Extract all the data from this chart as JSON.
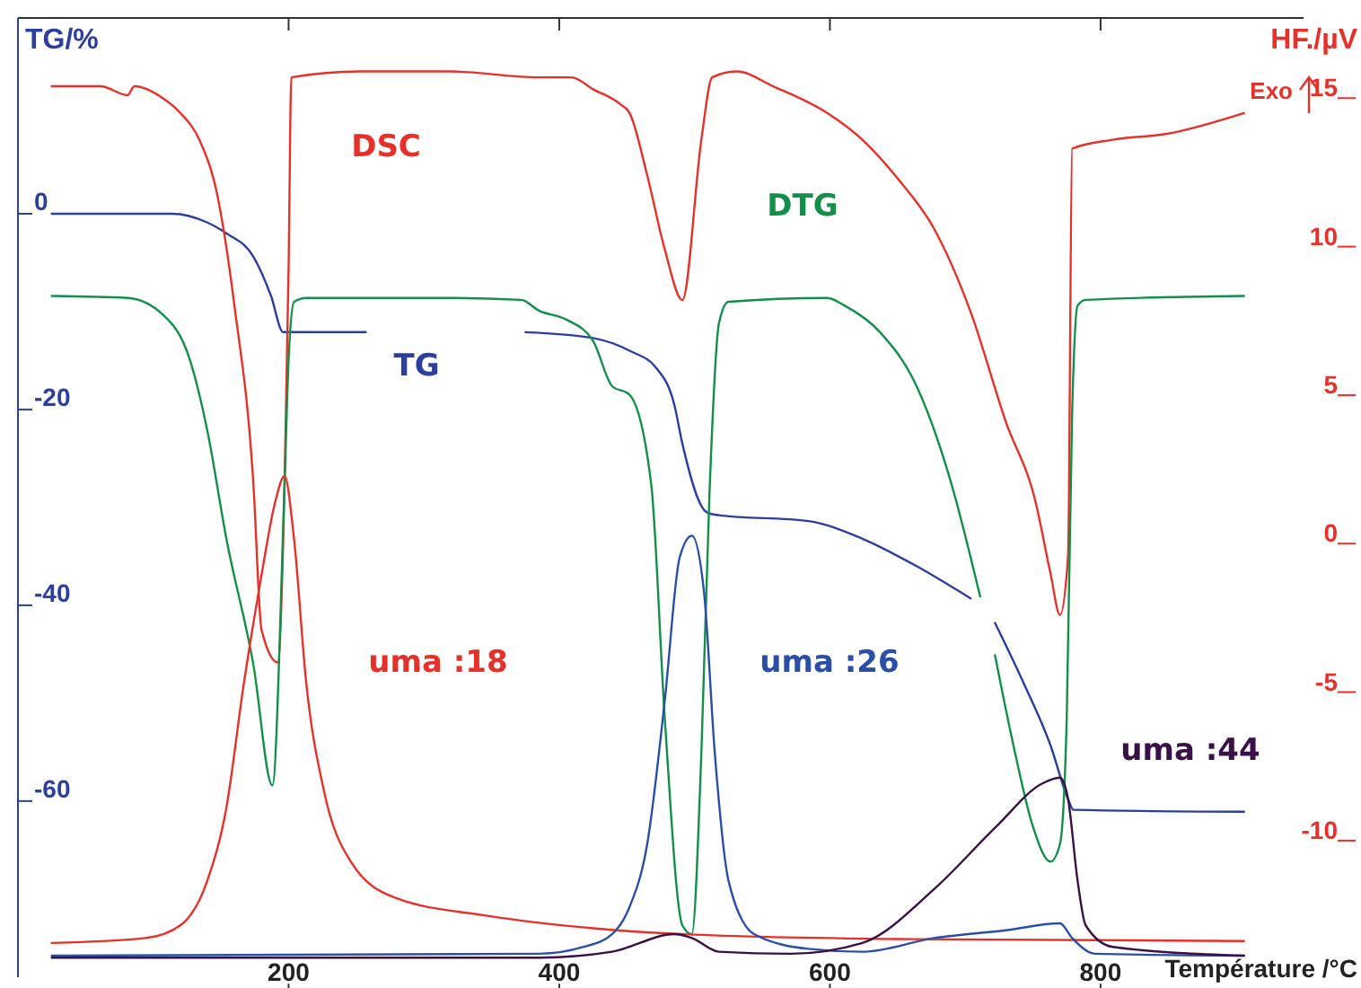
{
  "chart_data": {
    "type": "line",
    "ylabel": "TG/%",
    "y2label": "HF./µV",
    "xlabel": "Température /°C",
    "annotations": [
      "Exo"
    ],
    "xlim": [
      0,
      950
    ],
    "xticks": [
      200,
      400,
      600,
      800
    ],
    "ylim": [
      -78,
      20
    ],
    "yticks": [
      0,
      -20,
      -40,
      -60
    ],
    "y2lim": [
      -14.6,
      17.7
    ],
    "y2ticks": [
      15,
      10,
      5,
      0,
      -5,
      -10
    ],
    "grid": false,
    "legend": false,
    "marker": "none",
    "line_style": "solid",
    "series": [
      {
        "name": "TG",
        "color": "#2a3fa0",
        "x": [
          25,
          114,
          140,
          154,
          174,
          187,
          196,
          257,
          300,
          375,
          425,
          452,
          472,
          485,
          491,
          509,
          518,
          584,
          624,
          664,
          704,
          713,
          722,
          743,
          763,
          776,
          780,
          906
        ],
        "values": [
          0,
          0,
          -0.9,
          -2,
          -4.4,
          -8.4,
          -12.1,
          -12.1,
          null,
          -12.1,
          -12.7,
          -14,
          -15.8,
          -19.5,
          -23.5,
          -30.5,
          -30.8,
          -31.4,
          -33.2,
          -36,
          -39.3,
          null,
          -41.8,
          -47.9,
          -54.3,
          -59.8,
          -60.9,
          -61.1
        ]
      },
      {
        "name": "DSC",
        "color": "#e8302a",
        "axis": "y2",
        "x": [
          25,
          61,
          81,
          86,
          107,
          120,
          134,
          147,
          160,
          174,
          180,
          192,
          197,
          200,
          202,
          253,
          319,
          385,
          409,
          425,
          445,
          452,
          465,
          478,
          491,
          505,
          513,
          531,
          558,
          598,
          624,
          650,
          677,
          704,
          730,
          752,
          763,
          770,
          776,
          779,
          809,
          849,
          906
        ],
        "values": [
          15.4,
          15.4,
          15.1,
          15.4,
          15,
          14.5,
          13.6,
          11.8,
          8,
          2,
          -2.9,
          -4,
          2,
          9.3,
          15.7,
          15.9,
          15.9,
          15.7,
          15.7,
          15.3,
          14.8,
          14.5,
          12.4,
          9.9,
          8.2,
          13.6,
          15.7,
          15.9,
          15.4,
          14.5,
          13.6,
          12.3,
          10.6,
          7.8,
          4.1,
          1.4,
          -1,
          -2.4,
          -0.4,
          13.3,
          13.6,
          13.8,
          14.5
        ]
      },
      {
        "name": "DTG",
        "color": "#12904a",
        "x": [
          25,
          81,
          107,
          127,
          140,
          154,
          174,
          188,
          197,
          200,
          204,
          213,
          319,
          372,
          385,
          405,
          425,
          439,
          452,
          468,
          478,
          491,
          498,
          505,
          511,
          518,
          525,
          598,
          611,
          637,
          664,
          690,
          711,
          716,
          722,
          737,
          750,
          763,
          770,
          775,
          779,
          783,
          789,
          906
        ],
        "values": [
          -8.4,
          -8.6,
          -10.3,
          -14.9,
          -22.2,
          -33.2,
          -46.1,
          -58.4,
          -27.7,
          -14.9,
          -9,
          -8.6,
          -8.6,
          -8.8,
          -9.9,
          -10.8,
          -13,
          -17.6,
          -18.5,
          -27.7,
          -51.6,
          -72.7,
          -73.6,
          -55.2,
          -28.6,
          -11.2,
          -9,
          -8.6,
          -9.4,
          -12.1,
          -17.6,
          -27.7,
          -39.1,
          null,
          -45.1,
          -55.2,
          -62.6,
          -66.2,
          -64.4,
          -51.6,
          -20.4,
          -9.4,
          -8.8,
          -8.4
        ]
      },
      {
        "name": "uma :18",
        "color": "#e8302a",
        "x": [
          25,
          94,
          120,
          140,
          154,
          167,
          180,
          190,
          197,
          204,
          213,
          226,
          246,
          279,
          346,
          425,
          491,
          650,
          906
        ],
        "values": [
          -74.5,
          -74,
          -72.7,
          -68.1,
          -60.7,
          -47.9,
          -36.9,
          -29.5,
          -26.8,
          -33.2,
          -47.9,
          -58.9,
          -66.2,
          -69.9,
          -71.7,
          -73,
          -73.6,
          -74.1,
          -74.3
        ]
      },
      {
        "name": "uma :26",
        "color": "#2a4fa8",
        "x": [
          25,
          385,
          418,
          439,
          452,
          465,
          478,
          489,
          498,
          507,
          515,
          525,
          544,
          584,
          624,
          677,
          730,
          770,
          779,
          796,
          906
        ],
        "values": [
          -75.8,
          -75.6,
          -74.9,
          -73.6,
          -70.8,
          -64.4,
          -49.7,
          -35.1,
          -32.9,
          -38.7,
          -55.2,
          -68.1,
          -73.6,
          -75.1,
          -75.4,
          -74,
          -73.2,
          -72.5,
          -74,
          -75.6,
          -75.8
        ]
      },
      {
        "name": "uma :44",
        "color": "#3a1048",
        "x": [
          25,
          385,
          439,
          485,
          498,
          518,
          571,
          624,
          677,
          723,
          757,
          770,
          776,
          783,
          789,
          809,
          906
        ],
        "values": [
          -76,
          -76,
          -75.4,
          -73.6,
          -74,
          -75.4,
          -75.6,
          -74.5,
          -69,
          -62.6,
          -58.2,
          -57.6,
          -59.8,
          -68.1,
          -72.7,
          -74.9,
          -75.8
        ]
      }
    ]
  }
}
